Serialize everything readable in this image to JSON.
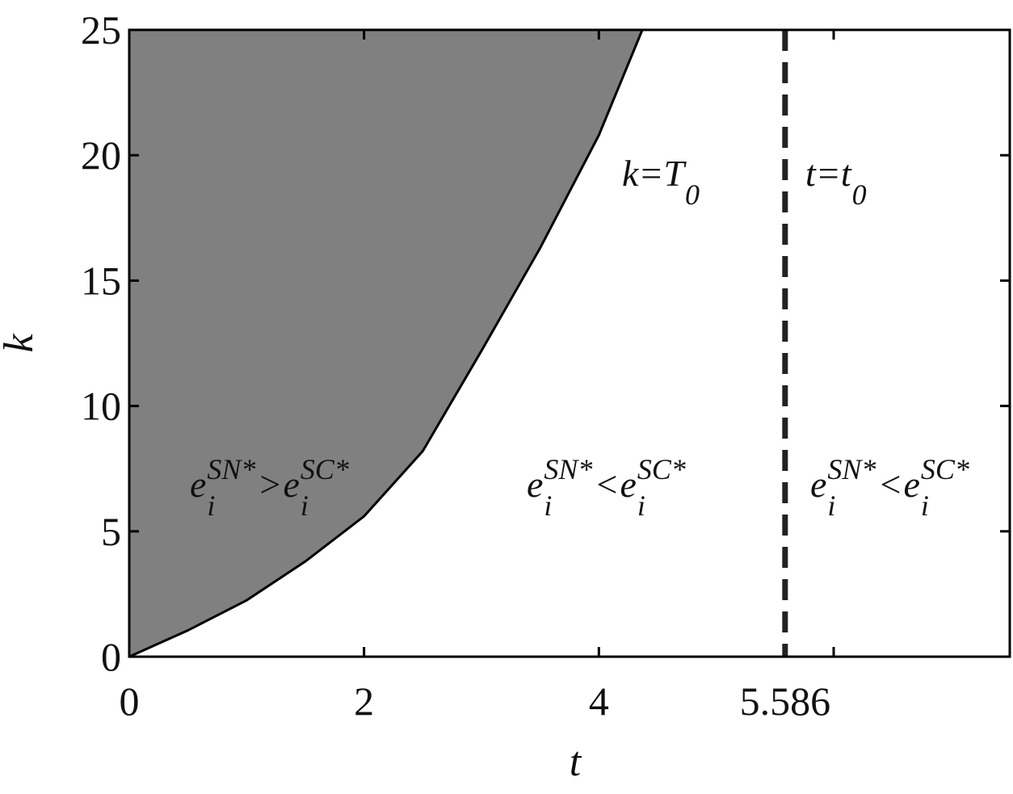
{
  "chart_data": {
    "type": "region",
    "x_label": "t",
    "y_label": "k",
    "xlim": [
      0,
      7.5
    ],
    "ylim": [
      0,
      25
    ],
    "xticks": [
      0,
      2,
      4,
      {
        "value": 5.586,
        "label": "5.586"
      },
      {
        "value": 6,
        "label": null
      }
    ],
    "yticks": [
      0,
      5,
      10,
      15,
      20,
      25
    ],
    "curve": {
      "x": [
        0,
        0.5,
        1,
        1.5,
        2,
        2.5,
        3,
        3.5,
        4,
        4.37
      ],
      "y": [
        0,
        1.05,
        2.25,
        3.8,
        5.6,
        8.2,
        12.2,
        16.3,
        20.8,
        25
      ],
      "color": "#000000",
      "fill": "#808080"
    },
    "vline": {
      "x": 5.586,
      "color": "#222222",
      "style": "dashed"
    },
    "annotations": [
      [
        {
          "t": "k=T",
          "pos": "base"
        },
        {
          "t": "0",
          "pos": "sub"
        }
      ],
      [
        {
          "t": "t=t",
          "pos": "base"
        },
        {
          "t": "0",
          "pos": "sub"
        }
      ],
      [
        {
          "t": "e",
          "pos": "base"
        },
        {
          "t": "i",
          "pos": "sub",
          "sup": "SN*"
        },
        {
          "t": ">",
          "pos": "base"
        },
        {
          "t": "e",
          "pos": "base"
        },
        {
          "t": "i",
          "pos": "sub",
          "sup": "SC*"
        }
      ],
      [
        {
          "t": "e",
          "pos": "base"
        },
        {
          "t": "i",
          "pos": "sub",
          "sup": "SN*"
        },
        {
          "t": "<",
          "pos": "base"
        },
        {
          "t": "e",
          "pos": "base"
        },
        {
          "t": "i",
          "pos": "sub",
          "sup": "SC*"
        }
      ],
      [
        {
          "t": "e",
          "pos": "base"
        },
        {
          "t": "i",
          "pos": "sub",
          "sup": "SN*"
        },
        {
          "t": "<",
          "pos": "base"
        },
        {
          "t": "e",
          "pos": "base"
        },
        {
          "t": "i",
          "pos": "sub",
          "sup": "SC*"
        }
      ]
    ]
  }
}
